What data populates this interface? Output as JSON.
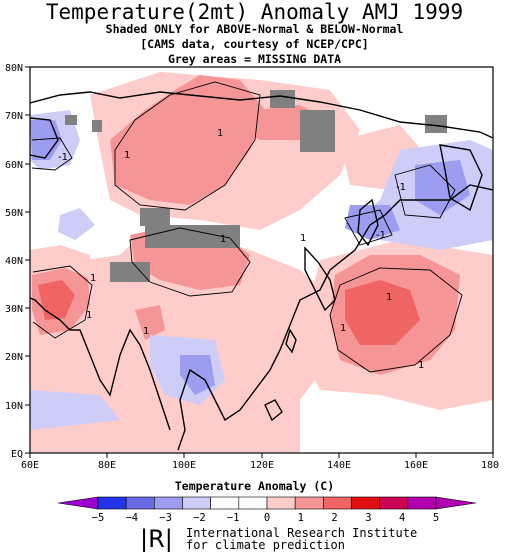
{
  "title": "Temperature(2mt) Anomaly AMJ 1999",
  "subtitle_lines": [
    "Shaded ONLY for ABOVE-Normal & BELOW-Normal",
    "[CAMS data, courtesy of NCEP/CPC]",
    "Grey areas = MISSING DATA"
  ],
  "x_axis": {
    "label": "Temperature  Anomaly (C)",
    "ticks": [
      "60E",
      "80E",
      "100E",
      "120E",
      "140E",
      "160E",
      "180"
    ]
  },
  "y_axis": {
    "ticks": [
      "EQ",
      "10N",
      "20N",
      "30N",
      "40N",
      "50N",
      "60N",
      "70N",
      "80N"
    ]
  },
  "colorbar": {
    "labels": [
      "-5",
      "-4",
      "-3",
      "-2",
      "-1",
      "0",
      "1",
      "2",
      "3",
      "4",
      "5"
    ],
    "colors": [
      "#9b00d0",
      "#2233e8",
      "#6a6ae6",
      "#9c9cf0",
      "#cdcdf8",
      "#ffffff",
      "#ffffff",
      "#ffcccc",
      "#f59595",
      "#f06464",
      "#e01010",
      "#cc0055",
      "#b000b0"
    ]
  },
  "legend_colors": {
    "warm_light": "#ffcccc",
    "warm_mid": "#f59595",
    "warm_strong": "#f06464",
    "cool_light": "#cdcdf8",
    "cool_mid": "#9c9cf0",
    "missing": "#808080"
  },
  "contour_labels": [
    "1",
    "1",
    "-1",
    "1",
    "1",
    "1",
    "1",
    "1",
    "1",
    "-1",
    "-1",
    "1",
    "1"
  ],
  "footer": {
    "logo": "|R|",
    "line1": "International Research Institute",
    "line2": "for climate prediction"
  },
  "chart_data": {
    "type": "heatmap",
    "title": "Temperature(2mt) Anomaly AMJ 1999",
    "xlabel": "Temperature  Anomaly (C)",
    "xlim": [
      60,
      180
    ],
    "ylim": [
      0,
      80
    ],
    "color_scale": [
      -5,
      -4,
      -3,
      -2,
      -1,
      0,
      1,
      2,
      3,
      4,
      5
    ]
  }
}
